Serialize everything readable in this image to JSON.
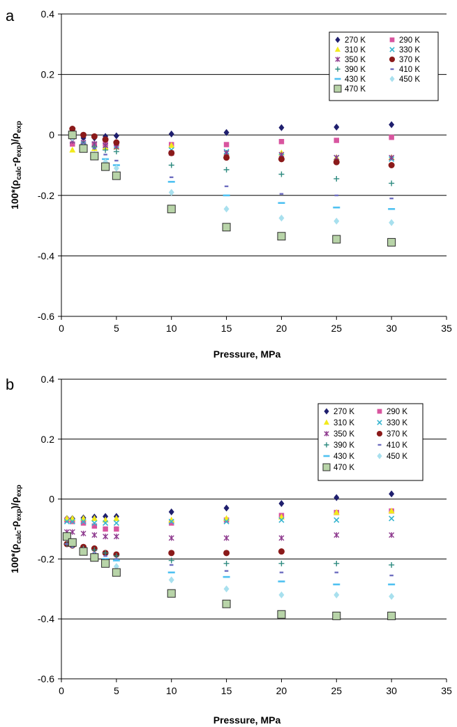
{
  "chart_data": [
    {
      "panel": "a",
      "type": "scatter",
      "xlabel": "Pressure, MPa",
      "ylabel_parts": {
        "prefix": "100*(ρ",
        "sub1": "calc",
        "mid": "-ρ",
        "sub2": "exp",
        "end": ")/ρ",
        "sub3": "exp"
      },
      "xlim": [
        0,
        35
      ],
      "ylim": [
        -0.6,
        0.4
      ],
      "xticks": [
        0,
        5,
        10,
        15,
        20,
        25,
        30,
        35
      ],
      "yticks": [
        -0.6,
        -0.4,
        -0.2,
        0,
        0.2,
        0.4
      ],
      "ytick_labels": [
        "-0.6",
        "-0.4",
        "-0.2",
        "0",
        "0.2",
        "0.4"
      ],
      "grid": "horizontal",
      "legend_position": "top-right",
      "x": [
        1,
        2,
        3,
        4,
        5,
        10,
        15,
        20,
        25,
        30
      ],
      "series": [
        {
          "name": "270 K",
          "marker": "diamond",
          "color": "#1f1f6e",
          "values": [
            0,
            -0.01,
            -0.01,
            -0.005,
            -0.003,
            0.003,
            0.008,
            0.024,
            0.026,
            0.034
          ]
        },
        {
          "name": "290 K",
          "marker": "square",
          "color": "#d8559f",
          "values": [
            -0.03,
            -0.03,
            -0.03,
            -0.03,
            -0.03,
            -0.032,
            -0.032,
            -0.022,
            -0.018,
            -0.008
          ]
        },
        {
          "name": "310 K",
          "marker": "triangle",
          "color": "#f2ea1d",
          "values": [
            -0.05,
            -0.05,
            -0.045,
            -0.04,
            -0.04,
            -0.035,
            -0.06,
            -0.06,
            -0.075,
            -0.075
          ]
        },
        {
          "name": "330 K",
          "marker": "x",
          "color": "#35b4cf",
          "values": [
            -0.02,
            -0.03,
            -0.03,
            -0.035,
            -0.035,
            -0.05,
            -0.055,
            -0.07,
            -0.075,
            -0.08
          ]
        },
        {
          "name": "350 K",
          "marker": "asterisk",
          "color": "#8e3a8e",
          "values": [
            -0.02,
            -0.025,
            -0.03,
            -0.035,
            -0.04,
            -0.06,
            -0.06,
            -0.065,
            -0.075,
            -0.075
          ]
        },
        {
          "name": "370 K",
          "marker": "circle",
          "color": "#8b1a1a",
          "values": [
            0.02,
            0,
            -0.005,
            -0.015,
            -0.025,
            -0.06,
            -0.075,
            -0.08,
            -0.09,
            -0.1
          ]
        },
        {
          "name": "390 K",
          "marker": "plus",
          "color": "#2e8b80",
          "values": [
            -0.01,
            -0.03,
            -0.04,
            -0.05,
            -0.055,
            -0.1,
            -0.115,
            -0.13,
            -0.145,
            -0.16
          ]
        },
        {
          "name": "410 K",
          "marker": "dash",
          "color": "#6e6ec0",
          "values": [
            -0.01,
            -0.03,
            -0.045,
            -0.065,
            -0.085,
            -0.14,
            -0.17,
            -0.195,
            -0.2,
            -0.21
          ]
        },
        {
          "name": "430 K",
          "marker": "bar",
          "color": "#4fc1f1",
          "values": [
            -0.01,
            -0.04,
            -0.065,
            -0.08,
            -0.1,
            -0.155,
            -0.2,
            -0.225,
            -0.24,
            -0.245
          ]
        },
        {
          "name": "450 K",
          "marker": "diamond",
          "color": "#a8e0ee",
          "values": [
            -0.01,
            -0.04,
            -0.065,
            -0.09,
            -0.11,
            -0.19,
            -0.245,
            -0.275,
            -0.285,
            -0.29
          ]
        },
        {
          "name": "470 K",
          "marker": "square-outlined",
          "color": "#b8d4a8",
          "values": [
            0,
            -0.045,
            -0.07,
            -0.105,
            -0.135,
            -0.245,
            -0.305,
            -0.335,
            -0.345,
            -0.355
          ]
        }
      ]
    },
    {
      "panel": "b",
      "type": "scatter",
      "xlabel": "Pressure, MPa",
      "ylabel_parts": {
        "prefix": "100*(ρ",
        "sub1": "calc",
        "mid": "-ρ",
        "sub2": "exp",
        "end": ")/ρ",
        "sub3": "exp"
      },
      "xlim": [
        0,
        35
      ],
      "ylim": [
        -0.6,
        0.4
      ],
      "xticks": [
        0,
        5,
        10,
        15,
        20,
        25,
        30,
        35
      ],
      "yticks": [
        -0.6,
        -0.4,
        -0.2,
        0,
        0.2,
        0.4
      ],
      "ytick_labels": [
        "-0.6",
        "-0.4",
        "-0.2",
        "0",
        "0.2",
        "0.4"
      ],
      "grid": "horizontal",
      "legend_position": "top-right",
      "x": [
        0.5,
        1,
        2,
        3,
        4,
        5,
        10,
        15,
        20,
        25,
        30
      ],
      "series": [
        {
          "name": "270 K",
          "marker": "diamond",
          "color": "#1f1f6e",
          "values": [
            -0.065,
            -0.065,
            -0.063,
            -0.06,
            -0.058,
            -0.058,
            -0.043,
            -0.03,
            -0.015,
            0.005,
            0.017
          ]
        },
        {
          "name": "290 K",
          "marker": "square",
          "color": "#d8559f",
          "values": [
            -0.07,
            -0.075,
            -0.08,
            -0.09,
            -0.1,
            -0.1,
            -0.08,
            -0.07,
            -0.055,
            -0.045,
            -0.04
          ]
        },
        {
          "name": "310 K",
          "marker": "triangle",
          "color": "#f2ea1d",
          "values": [
            -0.065,
            -0.065,
            -0.065,
            -0.065,
            -0.07,
            -0.065,
            -0.07,
            -0.065,
            -0.06,
            -0.045,
            -0.04
          ]
        },
        {
          "name": "330 K",
          "marker": "x",
          "color": "#35b4cf",
          "values": [
            -0.075,
            -0.075,
            -0.075,
            -0.08,
            -0.08,
            -0.08,
            -0.075,
            -0.075,
            -0.07,
            -0.07,
            -0.065
          ]
        },
        {
          "name": "350 K",
          "marker": "asterisk",
          "color": "#8e3a8e",
          "values": [
            -0.11,
            -0.11,
            -0.115,
            -0.12,
            -0.125,
            -0.125,
            -0.13,
            -0.13,
            -0.13,
            -0.12,
            -0.12
          ]
        },
        {
          "name": "370 K",
          "marker": "circle",
          "color": "#8b1a1a",
          "values": [
            -0.15,
            -0.155,
            -0.16,
            -0.165,
            -0.18,
            -0.185,
            -0.18,
            -0.18,
            -0.175,
            null,
            null
          ]
        },
        {
          "name": "390 K",
          "marker": "plus",
          "color": "#2e8b80",
          "values": [
            -0.15,
            -0.155,
            -0.165,
            -0.17,
            -0.18,
            -0.19,
            -0.205,
            -0.215,
            -0.215,
            -0.215,
            -0.22
          ]
        },
        {
          "name": "410 K",
          "marker": "dash",
          "color": "#6e6ec0",
          "values": [
            -0.15,
            -0.16,
            -0.17,
            -0.18,
            -0.19,
            -0.2,
            -0.22,
            -0.24,
            -0.245,
            -0.245,
            -0.255
          ]
        },
        {
          "name": "430 K",
          "marker": "bar",
          "color": "#4fc1f1",
          "values": [
            -0.13,
            -0.15,
            -0.17,
            -0.185,
            -0.2,
            -0.205,
            -0.245,
            -0.26,
            -0.275,
            -0.285,
            -0.285
          ]
        },
        {
          "name": "450 K",
          "marker": "diamond",
          "color": "#a8e0ee",
          "values": [
            -0.13,
            -0.15,
            -0.17,
            -0.19,
            -0.21,
            -0.225,
            -0.27,
            -0.3,
            -0.32,
            -0.32,
            -0.325
          ]
        },
        {
          "name": "470 K",
          "marker": "square-outlined",
          "color": "#b8d4a8",
          "values": [
            -0.125,
            -0.145,
            -0.175,
            -0.195,
            -0.215,
            -0.245,
            -0.315,
            -0.35,
            -0.385,
            -0.39,
            -0.39
          ]
        }
      ]
    }
  ]
}
